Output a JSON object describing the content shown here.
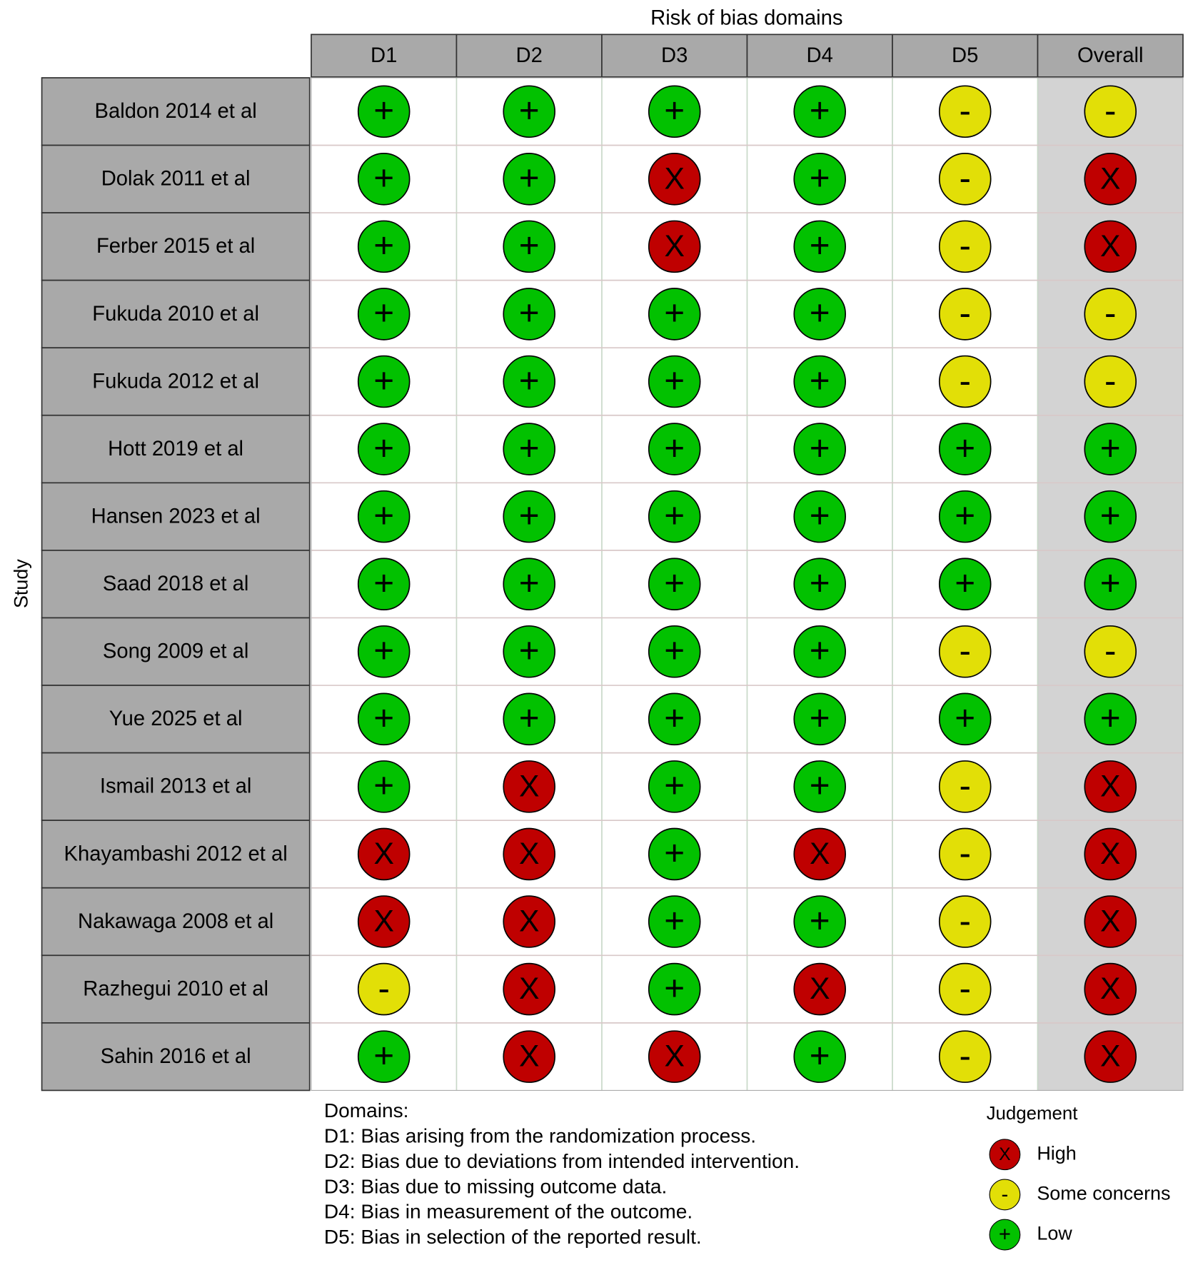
{
  "title": "Risk of bias domains",
  "y_axis_label": "Study",
  "columns": [
    "D1",
    "D2",
    "D3",
    "D4",
    "D5",
    "Overall"
  ],
  "rows": [
    {
      "study": "Baldon 2014 et al",
      "judgements": [
        "+",
        "+",
        "+",
        "+",
        "-",
        "-"
      ]
    },
    {
      "study": "Dolak 2011 et al",
      "judgements": [
        "+",
        "+",
        "X",
        "+",
        "-",
        "X"
      ]
    },
    {
      "study": "Ferber 2015 et al",
      "judgements": [
        "+",
        "+",
        "X",
        "+",
        "-",
        "X"
      ]
    },
    {
      "study": "Fukuda 2010 et al",
      "judgements": [
        "+",
        "+",
        "+",
        "+",
        "-",
        "-"
      ]
    },
    {
      "study": "Fukuda 2012 et al",
      "judgements": [
        "+",
        "+",
        "+",
        "+",
        "-",
        "-"
      ]
    },
    {
      "study": "Hott 2019 et al",
      "judgements": [
        "+",
        "+",
        "+",
        "+",
        "+",
        "+"
      ]
    },
    {
      "study": "Hansen 2023 et al",
      "judgements": [
        "+",
        "+",
        "+",
        "+",
        "+",
        "+"
      ]
    },
    {
      "study": "Saad 2018 et al",
      "judgements": [
        "+",
        "+",
        "+",
        "+",
        "+",
        "+"
      ]
    },
    {
      "study": "Song 2009 et al",
      "judgements": [
        "+",
        "+",
        "+",
        "+",
        "-",
        "-"
      ]
    },
    {
      "study": "Yue 2025 et al",
      "judgements": [
        "+",
        "+",
        "+",
        "+",
        "+",
        "+"
      ]
    },
    {
      "study": "Ismail 2013 et al",
      "judgements": [
        "+",
        "X",
        "+",
        "+",
        "-",
        "X"
      ]
    },
    {
      "study": "Khayambashi 2012 et al",
      "judgements": [
        "X",
        "X",
        "+",
        "X",
        "-",
        "X"
      ]
    },
    {
      "study": "Nakawaga 2008 et al",
      "judgements": [
        "X",
        "X",
        "+",
        "+",
        "-",
        "X"
      ]
    },
    {
      "study": "Razhegui 2010 et al",
      "judgements": [
        "-",
        "X",
        "+",
        "X",
        "-",
        "X"
      ]
    },
    {
      "study": "Sahin 2016 et al",
      "judgements": [
        "+",
        "X",
        "X",
        "+",
        "-",
        "X"
      ]
    }
  ],
  "domains": {
    "heading": "Domains:",
    "lines": [
      "D1: Bias arising from the randomization process.",
      "D2: Bias due to deviations from intended intervention.",
      "D3: Bias due to missing outcome data.",
      "D4: Bias in measurement of the outcome.",
      "D5: Bias in selection of the reported result."
    ]
  },
  "legend": {
    "title": "Judgement",
    "items": [
      {
        "symbol": "X",
        "label": "High",
        "color": "#bf0000"
      },
      {
        "symbol": "-",
        "label": "Some concerns",
        "color": "#e2df07"
      },
      {
        "symbol": "+",
        "label": "Low",
        "color": "#02c100"
      }
    ]
  }
}
